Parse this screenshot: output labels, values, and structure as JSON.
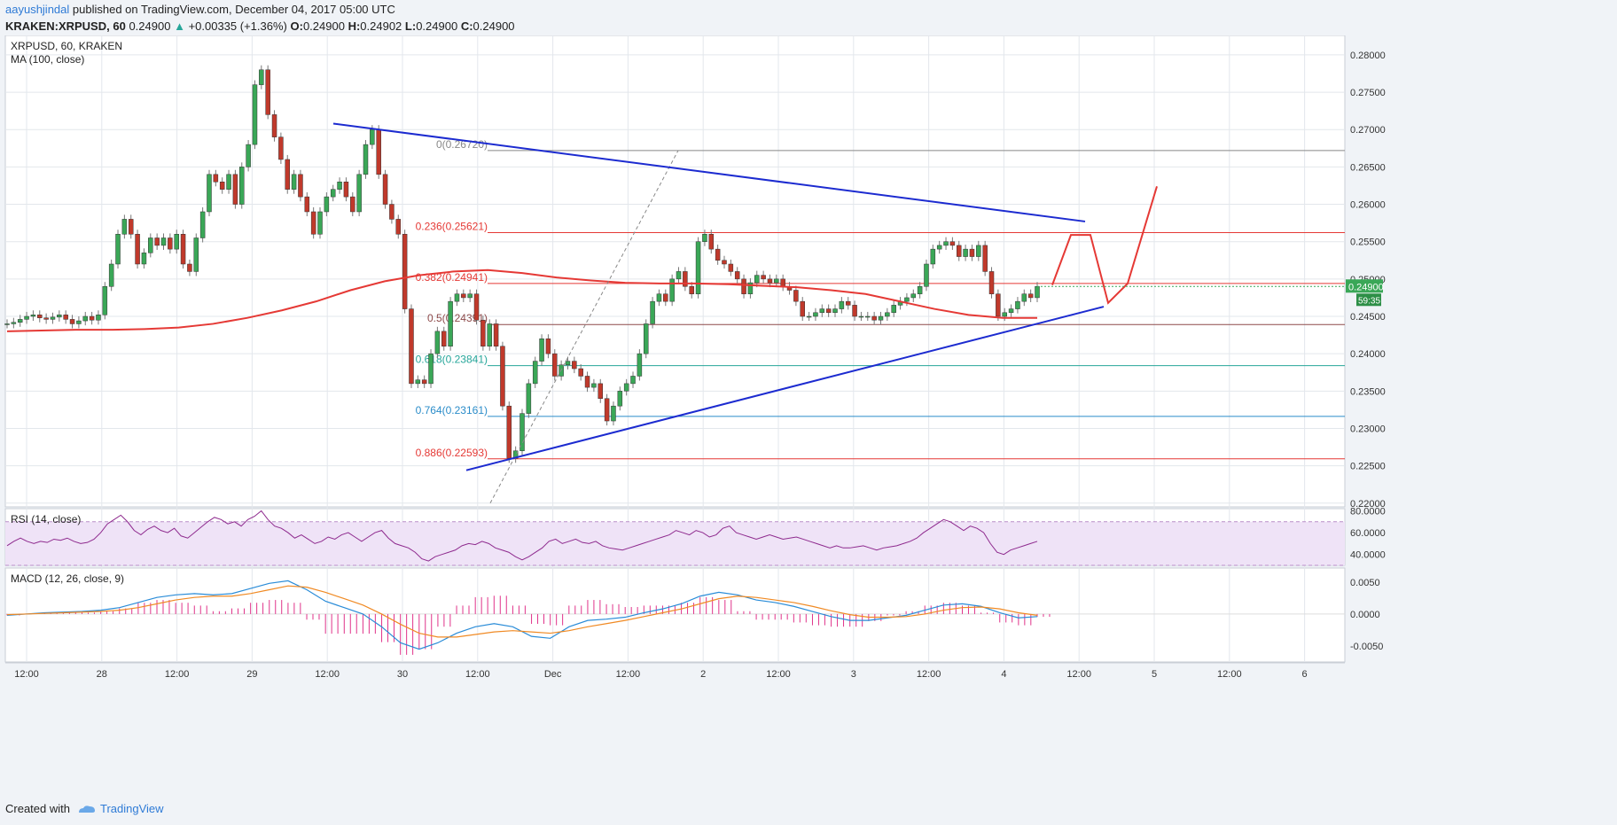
{
  "header": {
    "user": "aayushjindal",
    "published": " published on TradingView.com, December 04, 2017 05:00 UTC",
    "symbol": "KRAKEN:XRPUSD, 60",
    "last": "0.24900",
    "change": "+0.00335 (+1.36%)",
    "o_label": "O:",
    "o": "0.24900",
    "h_label": "H:",
    "h": "0.24902",
    "l_label": "L:",
    "l": "0.24900",
    "c_label": "C:",
    "c": "0.24900"
  },
  "footer": {
    "created_with": "Created with",
    "brand": "TradingView"
  },
  "chart_data": {
    "type": "candlestick",
    "title": "XRPUSD, 60, KRAKEN",
    "indicator_ma": "MA (100, close)",
    "price_axis": {
      "ylim": [
        0.2195,
        0.2826
      ],
      "ticks": [
        "0.28000",
        "0.27500",
        "0.27000",
        "0.26500",
        "0.26000",
        "0.25500",
        "0.25000",
        "0.24500",
        "0.24000",
        "0.23500",
        "0.23000",
        "0.22500",
        "0.22000"
      ]
    },
    "last_price_tag": "0.24900",
    "countdown_tag": "59:35",
    "x_ticks": [
      "12:00",
      "28",
      "12:00",
      "29",
      "12:00",
      "30",
      "12:00",
      "Dec",
      "12:00",
      "2",
      "12:00",
      "3",
      "12:00",
      "4",
      "12:00",
      "5",
      "12:00",
      "6"
    ],
    "fibonacci": [
      {
        "label": "0(0.26720)",
        "value": 0.2672,
        "color": "#888888"
      },
      {
        "label": "0.236(0.25621)",
        "value": 0.25621,
        "color": "#e53935"
      },
      {
        "label": "0.382(0.24941)",
        "value": 0.24941,
        "color": "#e53935"
      },
      {
        "label": "0.5(0.24391)",
        "value": 0.24391,
        "color": "#8d4a4a"
      },
      {
        "label": "0.618(0.23841)",
        "value": 0.23841,
        "color": "#26a69a"
      },
      {
        "label": "0.764(0.23161)",
        "value": 0.23161,
        "color": "#2a8cc9"
      },
      {
        "label": "0.886(0.22593)",
        "value": 0.22593,
        "color": "#e53935"
      }
    ],
    "close_series": [
      0.244,
      0.2442,
      0.2446,
      0.245,
      0.2452,
      0.2448,
      0.2446,
      0.2449,
      0.2452,
      0.2446,
      0.244,
      0.2444,
      0.245,
      0.2445,
      0.2452,
      0.249,
      0.252,
      0.256,
      0.258,
      0.256,
      0.252,
      0.2535,
      0.2555,
      0.2545,
      0.2555,
      0.254,
      0.256,
      0.252,
      0.251,
      0.2555,
      0.259,
      0.264,
      0.263,
      0.262,
      0.264,
      0.26,
      0.265,
      0.268,
      0.276,
      0.278,
      0.272,
      0.269,
      0.266,
      0.262,
      0.264,
      0.261,
      0.259,
      0.256,
      0.259,
      0.261,
      0.262,
      0.263,
      0.261,
      0.259,
      0.264,
      0.268,
      0.27,
      0.264,
      0.26,
      0.258,
      0.256,
      0.246,
      0.236,
      0.2365,
      0.236,
      0.24,
      0.243,
      0.241,
      0.247,
      0.248,
      0.2475,
      0.248,
      0.2445,
      0.241,
      0.244,
      0.241,
      0.233,
      0.226,
      0.227,
      0.232,
      0.236,
      0.239,
      0.242,
      0.24,
      0.237,
      0.2385,
      0.239,
      0.238,
      0.237,
      0.2355,
      0.236,
      0.234,
      0.231,
      0.233,
      0.235,
      0.236,
      0.237,
      0.24,
      0.244,
      0.247,
      0.248,
      0.247,
      0.25,
      0.251,
      0.249,
      0.248,
      0.255,
      0.256,
      0.254,
      0.2525,
      0.252,
      0.251,
      0.25,
      0.248,
      0.2495,
      0.2505,
      0.25,
      0.2495,
      0.25,
      0.249,
      0.2485,
      0.247,
      0.245,
      0.245,
      0.2455,
      0.246,
      0.2455,
      0.246,
      0.247,
      0.2465,
      0.245,
      0.245,
      0.245,
      0.2445,
      0.245,
      0.2455,
      0.2465,
      0.247,
      0.2475,
      0.248,
      0.249,
      0.252,
      0.254,
      0.2545,
      0.255,
      0.2545,
      0.253,
      0.254,
      0.253,
      0.2545,
      0.251,
      0.248,
      0.245,
      0.2455,
      0.246,
      0.247,
      0.248,
      0.2475,
      0.249
    ],
    "ma100_series": [
      0.243,
      0.2431,
      0.2432,
      0.2432,
      0.2433,
      0.2435,
      0.244,
      0.2448,
      0.2458,
      0.247,
      0.2485,
      0.2497,
      0.2505,
      0.251,
      0.2512,
      0.2508,
      0.2502,
      0.2498,
      0.2495,
      0.2494,
      0.2494,
      0.2493,
      0.2491,
      0.2489,
      0.2485,
      0.248,
      0.247,
      0.246,
      0.2452,
      0.2448,
      0.2448
    ],
    "rsi": {
      "label": "RSI (14, close)",
      "ylim": [
        30,
        82
      ],
      "ticks": [
        "80.0000",
        "60.0000",
        "40.0000"
      ],
      "upper": 70,
      "lower": 30,
      "values": [
        48,
        52,
        55,
        52,
        50,
        52,
        51,
        54,
        53,
        55,
        52,
        50,
        51,
        54,
        60,
        68,
        72,
        76,
        70,
        62,
        58,
        63,
        66,
        62,
        60,
        64,
        57,
        55,
        60,
        65,
        70,
        74,
        72,
        68,
        70,
        66,
        72,
        75,
        80,
        72,
        66,
        64,
        60,
        55,
        58,
        54,
        50,
        52,
        56,
        54,
        58,
        60,
        56,
        52,
        56,
        60,
        62,
        55,
        50,
        48,
        46,
        42,
        36,
        34,
        38,
        40,
        42,
        44,
        48,
        50,
        49,
        52,
        50,
        46,
        44,
        42,
        38,
        35,
        38,
        42,
        46,
        52,
        54,
        50,
        52,
        54,
        51,
        50,
        52,
        48,
        46,
        45,
        44,
        46,
        48,
        50,
        52,
        54,
        56,
        58,
        62,
        60,
        58,
        62,
        60,
        56,
        58,
        64,
        66,
        60,
        58,
        56,
        54,
        56,
        58,
        56,
        54,
        55,
        56,
        54,
        52,
        50,
        48,
        46,
        48,
        46,
        46,
        47,
        48,
        46,
        44,
        46,
        47,
        48,
        50,
        52,
        55,
        60,
        64,
        68,
        72,
        70,
        66,
        62,
        66,
        64,
        60,
        50,
        42,
        40,
        44,
        46,
        48,
        50,
        52
      ]
    },
    "macd": {
      "label": "MACD (12, 26, close, 9)",
      "ylim": [
        -0.0075,
        0.0072
      ],
      "ticks": [
        "0.0050",
        "0.0000",
        "-0.0050"
      ],
      "macd_line": [
        -0.0002,
        0.0,
        0.0002,
        0.0003,
        0.0004,
        0.0006,
        0.001,
        0.0018,
        0.0026,
        0.003,
        0.0032,
        0.003,
        0.0032,
        0.004,
        0.0048,
        0.0052,
        0.0038,
        0.002,
        0.001,
        0.0,
        -0.002,
        -0.0045,
        -0.0055,
        -0.0045,
        -0.003,
        -0.002,
        -0.0015,
        -0.002,
        -0.0035,
        -0.0038,
        -0.002,
        -0.001,
        -0.0008,
        -0.0005,
        0.0002,
        0.0008,
        0.0016,
        0.0028,
        0.0034,
        0.003,
        0.0022,
        0.0018,
        0.0012,
        0.0004,
        -0.0004,
        -0.001,
        -0.001,
        -0.0006,
        -0.0002,
        0.0006,
        0.0014,
        0.0016,
        0.0012,
        0.0002,
        -0.0006,
        -0.0004
      ],
      "signal_line": [
        -0.0001,
        0.0,
        0.0001,
        0.0002,
        0.0003,
        0.0004,
        0.0006,
        0.001,
        0.0016,
        0.0022,
        0.0026,
        0.0028,
        0.0028,
        0.0032,
        0.0038,
        0.0044,
        0.0042,
        0.0034,
        0.0024,
        0.0014,
        0.0,
        -0.0016,
        -0.003,
        -0.0036,
        -0.0036,
        -0.0032,
        -0.0028,
        -0.0026,
        -0.0028,
        -0.003,
        -0.0026,
        -0.002,
        -0.0015,
        -0.001,
        -0.0004,
        0.0002,
        0.0008,
        0.0016,
        0.0024,
        0.0028,
        0.0026,
        0.0022,
        0.0018,
        0.0012,
        0.0005,
        -0.0001,
        -0.0005,
        -0.0005,
        -0.0004,
        0.0,
        0.0006,
        0.001,
        0.0011,
        0.0008,
        0.0002,
        -0.0002
      ]
    }
  },
  "colors": {
    "up": "#3aa757",
    "down": "#c0392b",
    "ma": "#e53935",
    "trend": "#1c2bd0",
    "grid": "#e3e7ec"
  }
}
